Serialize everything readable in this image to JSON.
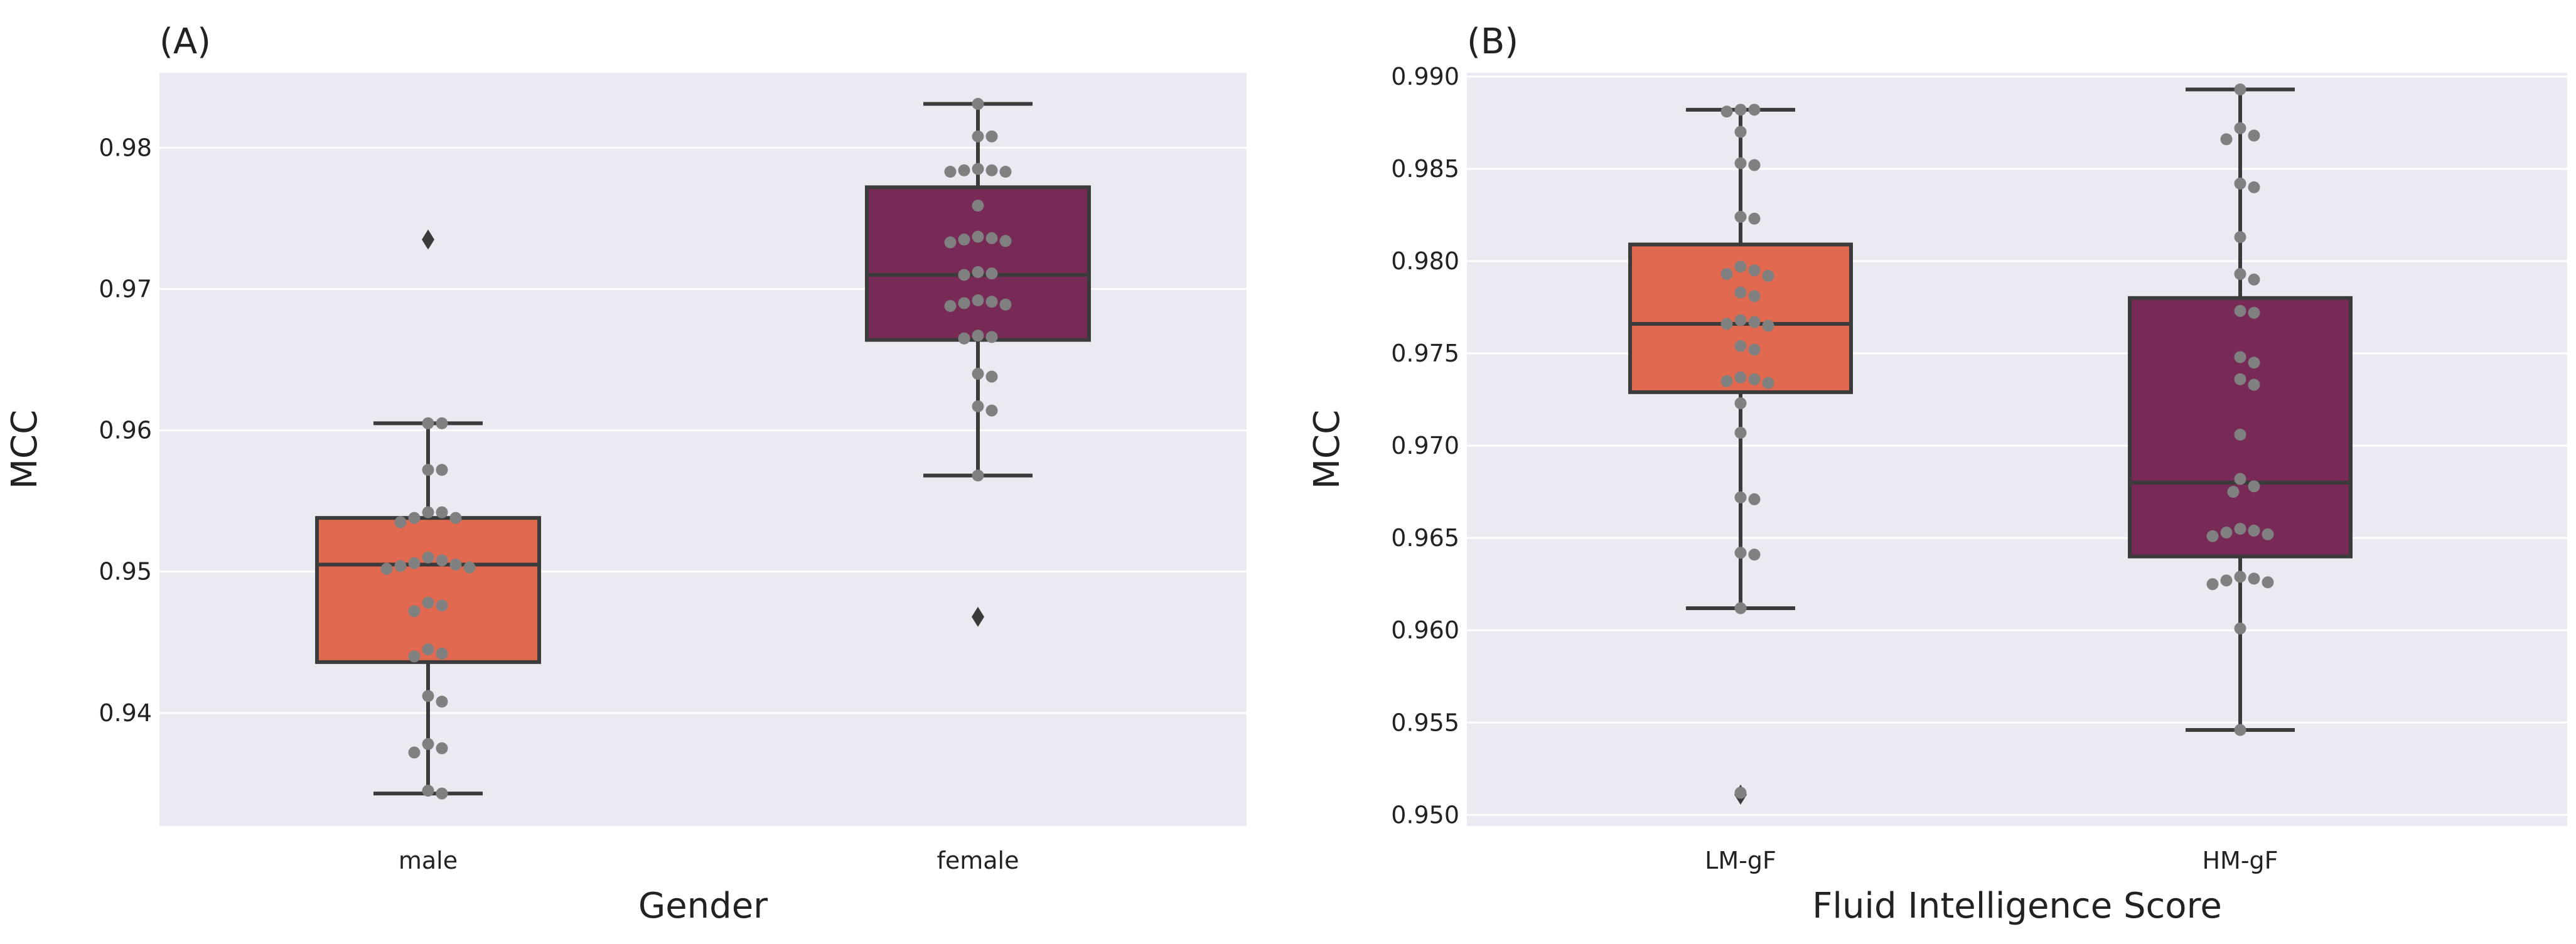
{
  "chart_data": [
    {
      "type": "box",
      "panel_label": "(A)",
      "xlabel": "Gender",
      "ylabel": "MCC",
      "ylim": [
        0.932,
        0.9853
      ],
      "yticks": [
        0.94,
        0.95,
        0.96,
        0.97,
        0.98
      ],
      "ytick_labels": [
        "0.94",
        "0.95",
        "0.96",
        "0.97",
        "0.98"
      ],
      "grid": true,
      "categories": [
        "male",
        "female"
      ],
      "boxes": [
        {
          "category": "male",
          "color": "#e0694f",
          "q1": 0.9436,
          "median": 0.9505,
          "q3": 0.9538,
          "whisker_low": 0.9343,
          "whisker_high": 0.9605,
          "outliers": [
            0.9735
          ],
          "points": [
            0.9605,
            0.9605,
            0.9572,
            0.9572,
            0.9542,
            0.9542,
            0.9538,
            0.9538,
            0.9535,
            0.951,
            0.9508,
            0.9506,
            0.9505,
            0.9504,
            0.9503,
            0.9502,
            0.9478,
            0.9476,
            0.9472,
            0.9445,
            0.9442,
            0.944,
            0.9412,
            0.9408,
            0.9378,
            0.9375,
            0.9372,
            0.9345,
            0.9343
          ]
        },
        {
          "category": "female",
          "color": "#762a55",
          "q1": 0.9664,
          "median": 0.971,
          "q3": 0.9772,
          "whisker_low": 0.9568,
          "whisker_high": 0.9831,
          "outliers": [
            0.9468
          ],
          "points": [
            0.9831,
            0.9808,
            0.9808,
            0.9785,
            0.9784,
            0.9784,
            0.9783,
            0.9783,
            0.9759,
            0.9737,
            0.9736,
            0.9735,
            0.9734,
            0.9733,
            0.9712,
            0.9711,
            0.971,
            0.9692,
            0.9691,
            0.969,
            0.9689,
            0.9688,
            0.9667,
            0.9666,
            0.9665,
            0.964,
            0.9638,
            0.9617,
            0.9614,
            0.9568
          ]
        }
      ]
    },
    {
      "type": "box",
      "panel_label": "(B)",
      "xlabel": "Fluid Intelligence Score",
      "ylabel": "MCC",
      "ylim": [
        0.9494,
        0.9902
      ],
      "yticks": [
        0.95,
        0.955,
        0.96,
        0.965,
        0.97,
        0.975,
        0.98,
        0.985,
        0.99
      ],
      "ytick_labels": [
        "0.950",
        "0.955",
        "0.960",
        "0.965",
        "0.970",
        "0.975",
        "0.980",
        "0.985",
        "0.990"
      ],
      "grid": true,
      "categories": [
        "LM-gF",
        "HM-gF"
      ],
      "boxes": [
        {
          "category": "LM-gF",
          "color": "#e0694f",
          "q1": 0.9729,
          "median": 0.9766,
          "q3": 0.9809,
          "whisker_low": 0.9612,
          "whisker_high": 0.9882,
          "outliers": [
            0.9511
          ],
          "points": [
            0.9882,
            0.9882,
            0.9881,
            0.987,
            0.9853,
            0.9852,
            0.9824,
            0.9823,
            0.9797,
            0.9795,
            0.9793,
            0.9792,
            0.9783,
            0.9781,
            0.9768,
            0.9767,
            0.9766,
            0.9765,
            0.9754,
            0.9752,
            0.9737,
            0.9736,
            0.9735,
            0.9734,
            0.9723,
            0.9707,
            0.9672,
            0.9671,
            0.9642,
            0.9641,
            0.9612,
            0.9512
          ]
        },
        {
          "category": "HM-gF",
          "color": "#762a55",
          "q1": 0.964,
          "median": 0.968,
          "q3": 0.978,
          "whisker_low": 0.9546,
          "whisker_high": 0.9893,
          "outliers": [],
          "points": [
            0.9893,
            0.9872,
            0.9868,
            0.9866,
            0.9842,
            0.984,
            0.9813,
            0.9793,
            0.979,
            0.9773,
            0.9772,
            0.9748,
            0.9745,
            0.9736,
            0.9733,
            0.9706,
            0.9682,
            0.9678,
            0.9675,
            0.9655,
            0.9654,
            0.9653,
            0.9652,
            0.9651,
            0.9629,
            0.9628,
            0.9627,
            0.9626,
            0.9625,
            0.9601,
            0.9546
          ]
        }
      ]
    }
  ]
}
